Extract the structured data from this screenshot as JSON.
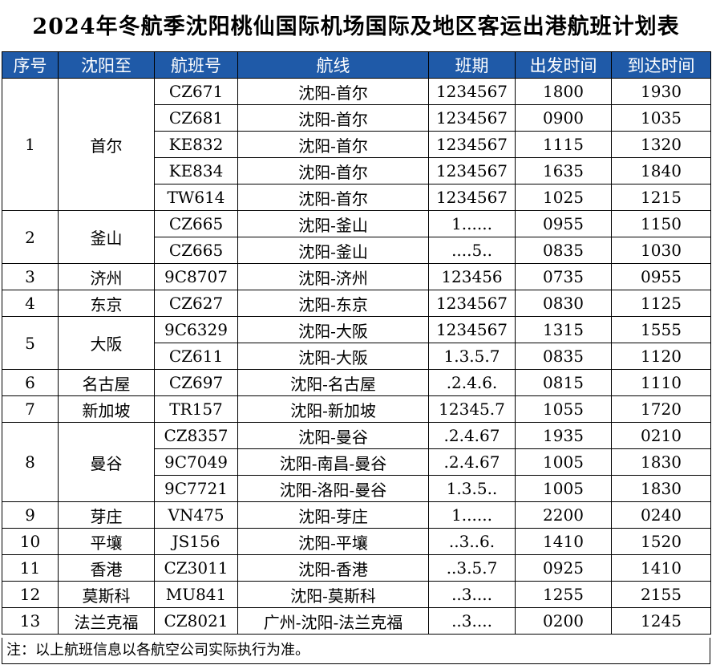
{
  "title": "2024年冬航季沈阳桃仙国际机场国际及地区客运出港航班计划表",
  "headers": [
    "序号",
    "沈阳至",
    "航班号",
    "航线",
    "班期",
    "出发时间",
    "到达时间"
  ],
  "groups": [
    {
      "no": "1",
      "dest": "首尔",
      "flights": [
        {
          "flight": "CZ671",
          "route": "沈阳-首尔",
          "days": "1234567",
          "dep": "1800",
          "arr": "1930"
        },
        {
          "flight": "CZ681",
          "route": "沈阳-首尔",
          "days": "1234567",
          "dep": "0900",
          "arr": "1035"
        },
        {
          "flight": "KE832",
          "route": "沈阳-首尔",
          "days": "1234567",
          "dep": "1115",
          "arr": "1320"
        },
        {
          "flight": "KE834",
          "route": "沈阳-首尔",
          "days": "1234567",
          "dep": "1635",
          "arr": "1840"
        },
        {
          "flight": "TW614",
          "route": "沈阳-首尔",
          "days": "1234567",
          "dep": "1025",
          "arr": "1215"
        }
      ]
    },
    {
      "no": "2",
      "dest": "釜山",
      "flights": [
        {
          "flight": "CZ665",
          "route": "沈阳-釜山",
          "days": "1......",
          "dep": "0955",
          "arr": "1150"
        },
        {
          "flight": "CZ665",
          "route": "沈阳-釜山",
          "days": "....5..",
          "dep": "0835",
          "arr": "1030"
        }
      ]
    },
    {
      "no": "3",
      "dest": "济州",
      "flights": [
        {
          "flight": "9C8707",
          "route": "沈阳-济州",
          "days": "123456",
          "dep": "0735",
          "arr": "0955"
        }
      ]
    },
    {
      "no": "4",
      "dest": "东京",
      "flights": [
        {
          "flight": "CZ627",
          "route": "沈阳-东京",
          "days": "1234567",
          "dep": "0830",
          "arr": "1125"
        }
      ]
    },
    {
      "no": "5",
      "dest": "大阪",
      "flights": [
        {
          "flight": "9C6329",
          "route": "沈阳-大阪",
          "days": "1234567",
          "dep": "1315",
          "arr": "1555"
        },
        {
          "flight": "CZ611",
          "route": "沈阳-大阪",
          "days": "1.3.5.7",
          "dep": "0835",
          "arr": "1120"
        }
      ]
    },
    {
      "no": "6",
      "dest": "名古屋",
      "flights": [
        {
          "flight": "CZ697",
          "route": "沈阳-名古屋",
          "days": ".2.4.6.",
          "dep": "0815",
          "arr": "1110"
        }
      ]
    },
    {
      "no": "7",
      "dest": "新加坡",
      "flights": [
        {
          "flight": "TR157",
          "route": "沈阳-新加坡",
          "days": "12345.7",
          "dep": "1055",
          "arr": "1720"
        }
      ]
    },
    {
      "no": "8",
      "dest": "曼谷",
      "flights": [
        {
          "flight": "CZ8357",
          "route": "沈阳-曼谷",
          "days": ".2.4.67",
          "dep": "1935",
          "arr": "0210"
        },
        {
          "flight": "9C7049",
          "route": "沈阳-南昌-曼谷",
          "days": ".2.4.67",
          "dep": "1005",
          "arr": "1830"
        },
        {
          "flight": "9C7721",
          "route": "沈阳-洛阳-曼谷",
          "days": "1.3.5..",
          "dep": "1005",
          "arr": "1830"
        }
      ]
    },
    {
      "no": "9",
      "dest": "芽庄",
      "flights": [
        {
          "flight": "VN475",
          "route": "沈阳-芽庄",
          "days": "1......",
          "dep": "2200",
          "arr": "0240"
        }
      ]
    },
    {
      "no": "10",
      "dest": "平壤",
      "flights": [
        {
          "flight": "JS156",
          "route": "沈阳-平壤",
          "days": "..3..6.",
          "dep": "1410",
          "arr": "1520"
        }
      ]
    },
    {
      "no": "11",
      "dest": "香港",
      "flights": [
        {
          "flight": "CZ3011",
          "route": "沈阳-香港",
          "days": "..3.5.7",
          "dep": "0925",
          "arr": "1410"
        }
      ]
    },
    {
      "no": "12",
      "dest": "莫斯科",
      "flights": [
        {
          "flight": "MU841",
          "route": "沈阳-莫斯科",
          "days": "..3....",
          "dep": "1255",
          "arr": "2155"
        }
      ]
    },
    {
      "no": "13",
      "dest": "法兰克福",
      "flights": [
        {
          "flight": "CZ8021",
          "route": "广州-沈阳-法兰克福",
          "days": "..3....",
          "dep": "0200",
          "arr": "1245"
        }
      ]
    }
  ],
  "note": "注：以上航班信息以各航空公司实际执行为准。",
  "colors": {
    "header_bg": "#1f5aa8",
    "header_text": "#ffffff",
    "border": "#000000"
  }
}
